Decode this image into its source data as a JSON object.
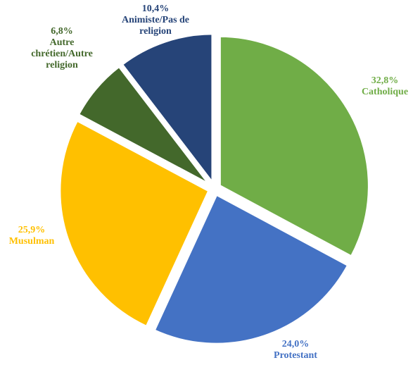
{
  "chart_data": {
    "type": "pie",
    "title": "",
    "exploded": true,
    "slices": [
      {
        "label": "Catholique",
        "value_label": "32,8%",
        "value": 32.8,
        "color": "#70AD47",
        "label_lines": [
          "Catholique"
        ]
      },
      {
        "label": "Protestant",
        "value_label": "24,0%",
        "value": 24.0,
        "color": "#4472C4",
        "label_lines": [
          "Protestant"
        ]
      },
      {
        "label": "Musulman",
        "value_label": "25,9%",
        "value": 25.9,
        "color": "#FFC000",
        "label_lines": [
          "Musulman"
        ]
      },
      {
        "label": "Autre chrétien/Autre religion",
        "value_label": "6,8%",
        "value": 6.8,
        "color": "#43682B",
        "label_lines": [
          "Autre",
          "chrétien/Autre",
          "religion"
        ]
      },
      {
        "label": "Animiste/Pas de religion",
        "value_label": "10,4%",
        "value": 10.4,
        "color": "#264478",
        "label_lines": [
          "Animiste/Pas de",
          "religion"
        ]
      }
    ]
  }
}
